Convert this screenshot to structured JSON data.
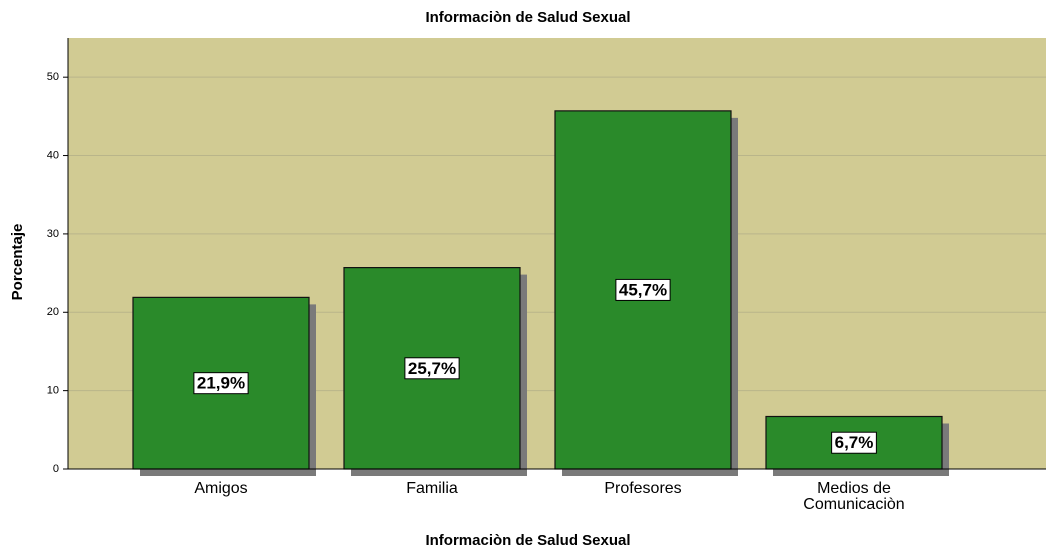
{
  "chart_data": {
    "type": "bar",
    "title": "Informaciòn de Salud Sexual",
    "x_label": "Informaciòn de Salud Sexual",
    "y_label": "Porcentaje",
    "categories": [
      "Amigos",
      "Familia",
      "Profesores",
      "Medios de Comunicaciòn"
    ],
    "values": [
      21.9,
      25.7,
      45.7,
      6.7
    ],
    "value_labels": [
      "21,9%",
      "25,7%",
      "45,7%",
      "6,7%"
    ],
    "color": "#2a8a2a",
    "ylim": [
      0,
      55
    ],
    "yticks": [
      0,
      10,
      20,
      30,
      40,
      50
    ],
    "grid": true
  }
}
